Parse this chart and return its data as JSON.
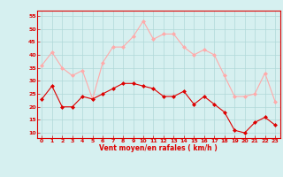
{
  "xlabel": "Vent moyen/en rafales ( km/h )",
  "x": [
    0,
    1,
    2,
    3,
    4,
    5,
    6,
    7,
    8,
    9,
    10,
    11,
    12,
    13,
    14,
    15,
    16,
    17,
    18,
    19,
    20,
    21,
    22,
    23
  ],
  "wind_mean": [
    23,
    28,
    20,
    20,
    24,
    23,
    25,
    27,
    29,
    29,
    28,
    27,
    24,
    24,
    26,
    21,
    24,
    21,
    18,
    11,
    10,
    14,
    16,
    13
  ],
  "wind_gust": [
    36,
    41,
    35,
    32,
    34,
    23,
    37,
    43,
    43,
    47,
    53,
    46,
    48,
    48,
    43,
    40,
    42,
    40,
    32,
    24,
    24,
    25,
    33,
    22
  ],
  "bg_color": "#d6f0f0",
  "grid_color": "#b0d8d8",
  "mean_color": "#dd0000",
  "gust_color": "#ffaaaa",
  "ylim": [
    8,
    57
  ],
  "yticks": [
    10,
    15,
    20,
    25,
    30,
    35,
    40,
    45,
    50,
    55
  ],
  "xticks": [
    0,
    1,
    2,
    3,
    4,
    5,
    6,
    7,
    8,
    9,
    10,
    11,
    12,
    13,
    14,
    15,
    16,
    17,
    18,
    19,
    20,
    21,
    22,
    23
  ]
}
